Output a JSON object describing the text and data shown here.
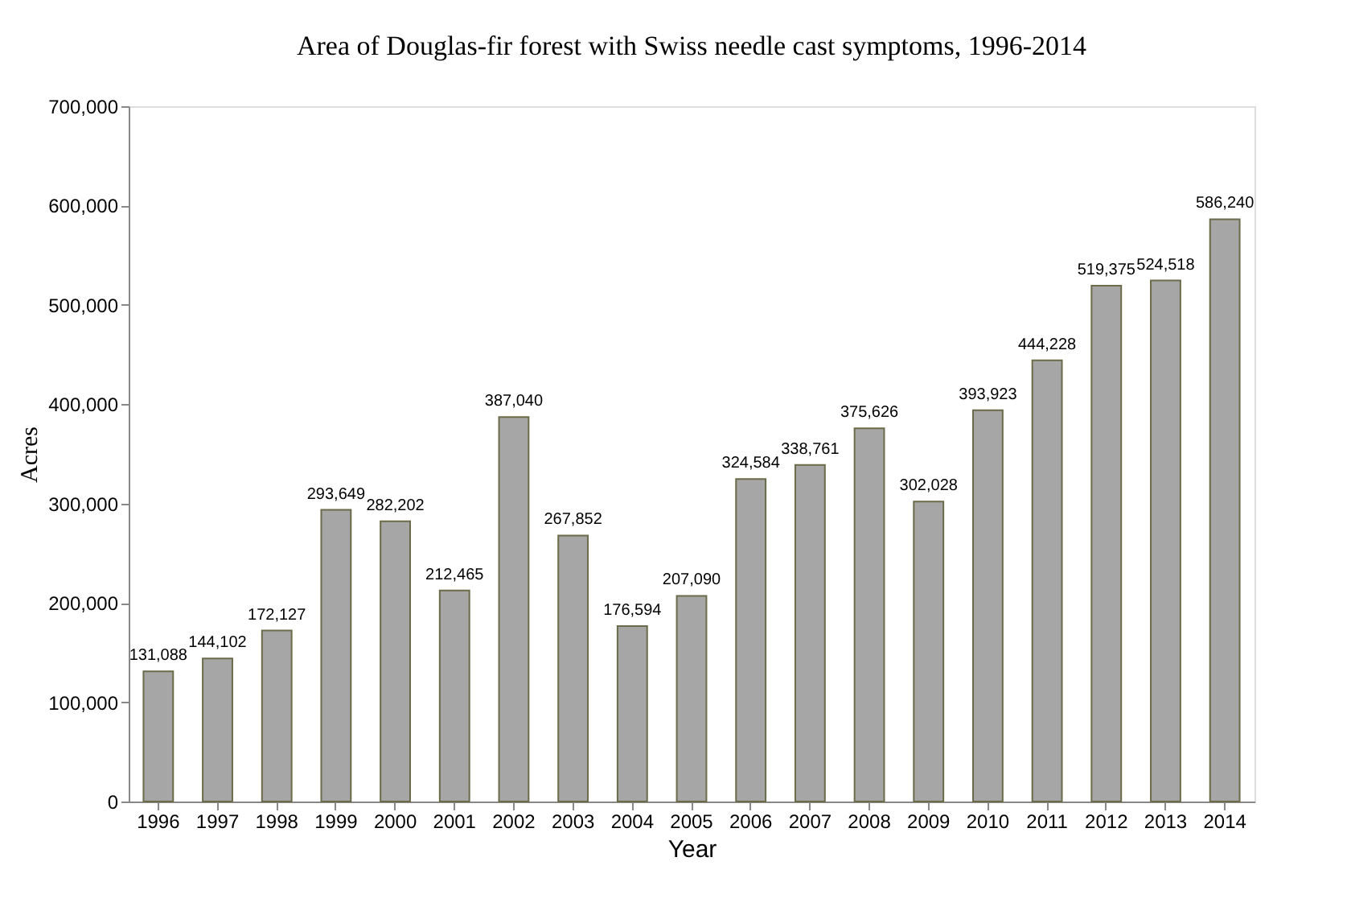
{
  "chart_data": {
    "type": "bar",
    "title": "Area of Douglas-fir forest with Swiss needle cast symptoms, 1996-2014",
    "xlabel": "Year",
    "ylabel": "Acres",
    "categories": [
      "1996",
      "1997",
      "1998",
      "1999",
      "2000",
      "2001",
      "2002",
      "2003",
      "2004",
      "2005",
      "2006",
      "2007",
      "2008",
      "2009",
      "2010",
      "2011",
      "2012",
      "2013",
      "2014"
    ],
    "values": [
      131088,
      144102,
      172127,
      293649,
      282202,
      212465,
      387040,
      267852,
      176594,
      207090,
      324584,
      338761,
      375626,
      302028,
      393923,
      444228,
      519375,
      524518,
      586240
    ],
    "value_labels": [
      "131,088",
      "144,102",
      "172,127",
      "293,649",
      "282,202",
      "212,465",
      "387,040",
      "267,852",
      "176,594",
      "207,090",
      "324,584",
      "338,761",
      "375,626",
      "302,028",
      "393,923",
      "444,228",
      "519,375",
      "524,518",
      "586,240"
    ],
    "color": "#a6a6a6",
    "ylim": [
      0,
      700000
    ],
    "yticks": [
      0,
      {
        "value": 100000,
        "label": "100,000"
      },
      {
        "value": 200000,
        "label": "200,000"
      },
      {
        "value": 300000,
        "label": "300,000"
      },
      {
        "value": 400000,
        "label": "400,000"
      },
      {
        "value": 500000,
        "label": "500,000"
      },
      {
        "value": 600000,
        "label": "600,000"
      },
      {
        "value": 700000,
        "label": "700,000"
      }
    ],
    "grid": false
  }
}
